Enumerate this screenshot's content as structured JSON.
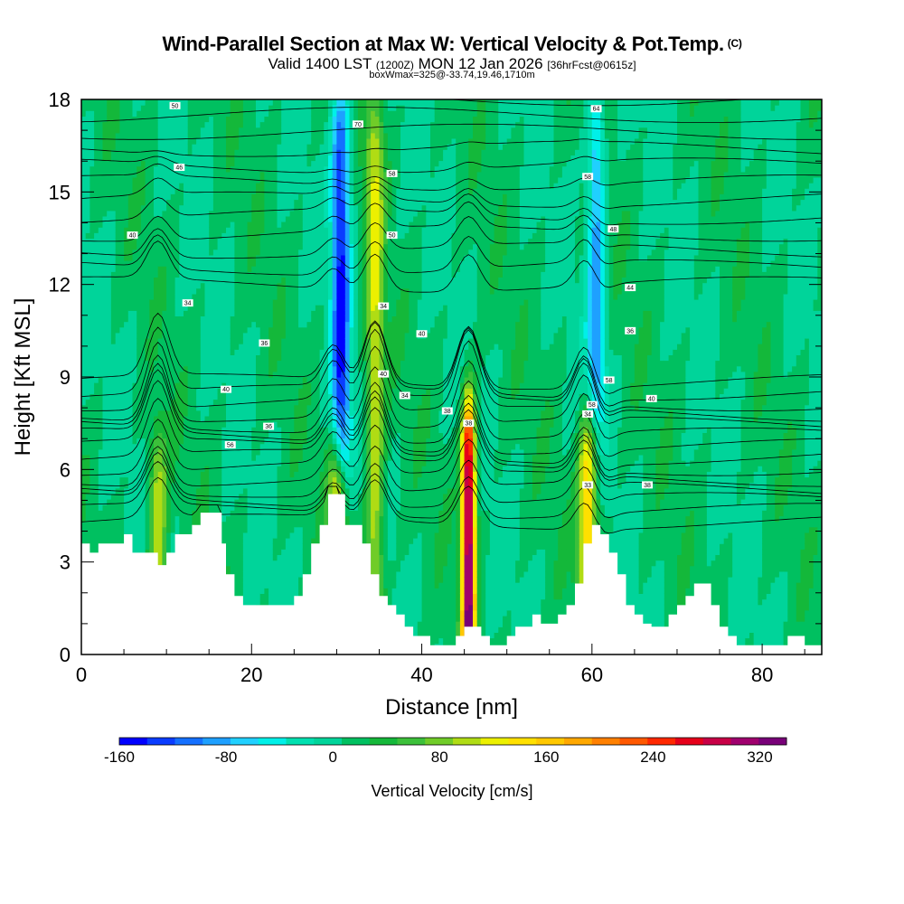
{
  "header": {
    "title_main": "Wind-Parallel Section at Max W: Vertical Velocity & Pot.Temp.",
    "title_mark": "(C)",
    "valid_prefix": "Valid 1400 LST",
    "valid_utc": "(1200Z)",
    "valid_date": "MON 12 Jan 2026",
    "valid_fcst": "[36hrFcst@0615z]",
    "box_info": "boxWmax=325@-33.74,19.46,1710m"
  },
  "colorbar": {
    "label": "Vertical Velocity [cm/s]",
    "tick_labels": [
      "-160",
      "-80",
      "0",
      "80",
      "160",
      "240",
      "320"
    ],
    "tick_values": [
      -160,
      -80,
      0,
      80,
      160,
      240,
      320
    ],
    "range": [
      -160,
      340
    ],
    "colors": [
      "#0000ff",
      "#0a3cff",
      "#1470ff",
      "#1ea0ff",
      "#20d0ff",
      "#00f0e8",
      "#00e0b0",
      "#00d49a",
      "#00c060",
      "#14b83a",
      "#3cc03a",
      "#70cc28",
      "#b0dc14",
      "#ecf000",
      "#ffe000",
      "#ffc800",
      "#ffa800",
      "#ff8000",
      "#ff5800",
      "#ff2800",
      "#e6001a",
      "#c80046",
      "#a0006e",
      "#780078"
    ]
  },
  "chart_data": {
    "type": "heatmap",
    "title": "Wind-Parallel Section at Max W: Vertical Velocity & Pot.Temp.",
    "xlabel": "Distance [nm]",
    "ylabel": "Height [Kft MSL]",
    "xlim": [
      0,
      87
    ],
    "ylim": [
      0,
      18
    ],
    "x_ticks": [
      0,
      20,
      40,
      60,
      80
    ],
    "y_ticks": [
      0,
      3,
      6,
      9,
      12,
      15,
      18
    ],
    "field": "Vertical Velocity [cm/s]",
    "max_w": 325,
    "features": [
      {
        "name": "strong updraft",
        "x": 45.5,
        "w": 320,
        "top_kft": 8.0
      },
      {
        "name": "downdraft column",
        "x": 30.5,
        "w": -150,
        "bottom_kft": 6.0,
        "top_kft": 18.0
      },
      {
        "name": "updraft",
        "x": 30.0,
        "w": 120,
        "top_kft": 7.0
      },
      {
        "name": "updraft",
        "x": 34.5,
        "w": 100,
        "top_kft": 18.0
      },
      {
        "name": "updraft",
        "x": 59.5,
        "w": 150,
        "top_kft": 7.5
      },
      {
        "name": "downdraft column",
        "x": 60.5,
        "w": -100,
        "bottom_kft": 7.5,
        "top_kft": 18.0
      },
      {
        "name": "updraft",
        "x": 9.0,
        "w": 100,
        "top_kft": 7.0
      }
    ],
    "terrain_kft": [
      [
        0,
        3.6
      ],
      [
        1,
        3.3
      ],
      [
        2,
        3.6
      ],
      [
        4,
        3.6
      ],
      [
        5,
        3.9
      ],
      [
        6,
        3.3
      ],
      [
        8,
        3.3
      ],
      [
        9,
        2.9
      ],
      [
        10,
        3.3
      ],
      [
        11,
        3.9
      ],
      [
        12,
        3.9
      ],
      [
        13,
        4.2
      ],
      [
        14,
        4.6
      ],
      [
        16,
        4.6
      ],
      [
        16.5,
        3.6
      ],
      [
        17,
        2.6
      ],
      [
        18,
        1.9
      ],
      [
        19,
        1.6
      ],
      [
        22,
        1.6
      ],
      [
        24,
        1.6
      ],
      [
        25,
        1.9
      ],
      [
        26,
        2.6
      ],
      [
        27,
        3.6
      ],
      [
        28,
        4.2
      ],
      [
        29,
        5.2
      ],
      [
        30,
        5.2
      ],
      [
        31,
        4.2
      ],
      [
        32,
        4.2
      ],
      [
        33,
        3.6
      ],
      [
        34,
        2.6
      ],
      [
        35,
        1.9
      ],
      [
        36,
        1.6
      ],
      [
        37,
        1.3
      ],
      [
        38,
        0.9
      ],
      [
        39,
        0.6
      ],
      [
        40,
        0.6
      ],
      [
        41,
        0.3
      ],
      [
        43,
        0.3
      ],
      [
        44,
        0.6
      ],
      [
        45,
        0.9
      ],
      [
        46,
        0.9
      ],
      [
        47,
        0.6
      ],
      [
        48,
        0.3
      ],
      [
        49,
        0.3
      ],
      [
        50,
        0.6
      ],
      [
        51,
        0.9
      ],
      [
        52,
        0.9
      ],
      [
        53,
        1.3
      ],
      [
        54,
        1.0
      ],
      [
        55,
        1.0
      ],
      [
        56,
        1.3
      ],
      [
        57,
        1.6
      ],
      [
        58,
        2.3
      ],
      [
        59,
        3.6
      ],
      [
        60,
        4.2
      ],
      [
        61,
        3.9
      ],
      [
        62,
        3.3
      ],
      [
        63,
        2.6
      ],
      [
        64,
        1.6
      ],
      [
        65,
        1.3
      ],
      [
        66,
        1.0
      ],
      [
        67,
        0.9
      ],
      [
        68,
        0.9
      ],
      [
        69,
        1.3
      ],
      [
        70,
        1.6
      ],
      [
        71,
        1.9
      ],
      [
        72,
        2.3
      ],
      [
        73,
        2.3
      ],
      [
        74,
        1.6
      ],
      [
        75,
        0.9
      ],
      [
        76,
        0.6
      ],
      [
        77,
        0.3
      ],
      [
        82,
        0.3
      ],
      [
        83,
        0.6
      ],
      [
        84,
        0.6
      ],
      [
        85,
        0.3
      ],
      [
        87,
        0.3
      ]
    ],
    "isentrope_labels": [
      {
        "text": "50",
        "x": 11,
        "y": 17.8
      },
      {
        "text": "70",
        "x": 32.5,
        "y": 17.2
      },
      {
        "text": "64",
        "x": 60.5,
        "y": 17.7
      },
      {
        "text": "46",
        "x": 11.5,
        "y": 15.8
      },
      {
        "text": "58",
        "x": 36.5,
        "y": 15.6
      },
      {
        "text": "58",
        "x": 59.5,
        "y": 15.5
      },
      {
        "text": "40",
        "x": 6,
        "y": 13.6
      },
      {
        "text": "50",
        "x": 36.5,
        "y": 13.6
      },
      {
        "text": "48",
        "x": 62.5,
        "y": 13.8
      },
      {
        "text": "44",
        "x": 64.5,
        "y": 11.9
      },
      {
        "text": "34",
        "x": 12.5,
        "y": 11.4
      },
      {
        "text": "34",
        "x": 35.5,
        "y": 11.3
      },
      {
        "text": "40",
        "x": 40,
        "y": 10.4
      },
      {
        "text": "36",
        "x": 64.5,
        "y": 10.5
      },
      {
        "text": "36",
        "x": 21.5,
        "y": 10.1
      },
      {
        "text": "40",
        "x": 35.5,
        "y": 9.1
      },
      {
        "text": "58",
        "x": 62,
        "y": 8.9
      },
      {
        "text": "40",
        "x": 17,
        "y": 8.6
      },
      {
        "text": "34",
        "x": 38,
        "y": 8.4
      },
      {
        "text": "40",
        "x": 67,
        "y": 8.3
      },
      {
        "text": "38",
        "x": 43,
        "y": 7.9
      },
      {
        "text": "34",
        "x": 59.5,
        "y": 7.8
      },
      {
        "text": "58",
        "x": 60,
        "y": 8.1
      },
      {
        "text": "38",
        "x": 45.5,
        "y": 7.5
      },
      {
        "text": "36",
        "x": 22,
        "y": 7.4
      },
      {
        "text": "56",
        "x": 17.5,
        "y": 6.8
      },
      {
        "text": "38",
        "x": 66.5,
        "y": 5.5
      },
      {
        "text": "33",
        "x": 59.5,
        "y": 5.5
      }
    ]
  }
}
